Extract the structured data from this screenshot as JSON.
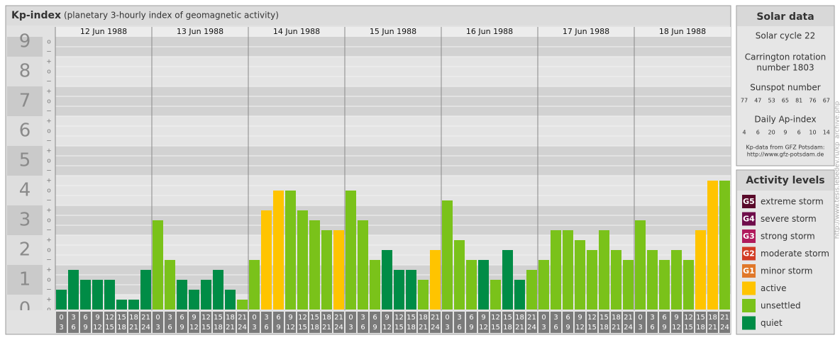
{
  "chart_data": {
    "type": "bar",
    "title": "Kp-index",
    "subtitle": "(planetary 3-hourly index of geomagnetic activity)",
    "days": [
      "12 Jun 1988",
      "13 Jun 1988",
      "14 Jun 1988",
      "15 Jun 1988",
      "16 Jun 1988",
      "17 Jun 1988",
      "18 Jun 1988"
    ],
    "hours": [
      [
        "0",
        "3"
      ],
      [
        "3",
        "6"
      ],
      [
        "6",
        "9"
      ],
      [
        "9",
        "12"
      ],
      [
        "12",
        "15"
      ],
      [
        "15",
        "18"
      ],
      [
        "18",
        "21"
      ],
      [
        "21",
        "24"
      ]
    ],
    "values": [
      0.667,
      1.333,
      1,
      1,
      1,
      0.333,
      0.333,
      1.333,
      3,
      1.667,
      1,
      0.667,
      1,
      1.333,
      0.667,
      0.333,
      1.667,
      3.333,
      4,
      4,
      3.333,
      3,
      2.667,
      2.667,
      4,
      3,
      1.667,
      2,
      1.333,
      1.333,
      1,
      2,
      3.667,
      2.333,
      1.667,
      1.667,
      1,
      2,
      1,
      1.333,
      1.667,
      2.667,
      2.667,
      2.333,
      2,
      2.667,
      2,
      1.667,
      3,
      2,
      1.667,
      2,
      1.667,
      2.667,
      4.333,
      4.333
    ],
    "colors": [
      "#008c46",
      "#008c46",
      "#008c46",
      "#008c46",
      "#008c46",
      "#008c46",
      "#008c46",
      "#008c46",
      "#7ac21a",
      "#7ac21a",
      "#008c46",
      "#008c46",
      "#008c46",
      "#008c46",
      "#008c46",
      "#7ac21a",
      "#7ac21a",
      "#ffc400",
      "#ffc400",
      "#7ac21a",
      "#7ac21a",
      "#7ac21a",
      "#7ac21a",
      "#ffc400",
      "#7ac21a",
      "#7ac21a",
      "#7ac21a",
      "#008c46",
      "#008c46",
      "#008c46",
      "#7ac21a",
      "#ffc400",
      "#7ac21a",
      "#7ac21a",
      "#7ac21a",
      "#008c46",
      "#7ac21a",
      "#008c46",
      "#008c46",
      "#7ac21a",
      "#7ac21a",
      "#7ac21a",
      "#7ac21a",
      "#7ac21a",
      "#7ac21a",
      "#7ac21a",
      "#7ac21a",
      "#7ac21a",
      "#7ac21a",
      "#7ac21a",
      "#7ac21a",
      "#7ac21a",
      "#7ac21a",
      "#ffc400",
      "#ffc400",
      "#7ac21a"
    ],
    "ylim": [
      0,
      9
    ],
    "yticks": [
      0,
      1,
      2,
      3,
      4,
      5,
      6,
      7,
      8,
      9
    ],
    "minor_tick_labels": [
      "+",
      "o",
      "−"
    ]
  },
  "solar_data": {
    "title": "Solar data",
    "cycle": "Solar cycle 22",
    "carrington": [
      "Carrington rotation",
      "number 1803"
    ],
    "sunspot_title": "Sunspot number",
    "sunspot": [
      77,
      47,
      53,
      65,
      81,
      76,
      67
    ],
    "ap_title": "Daily Ap-index",
    "ap": [
      4,
      6,
      20,
      9,
      6,
      10,
      14
    ],
    "source": [
      "Kp-data from GFZ Potsdam:",
      "http://www.gfz-potsdam.de"
    ]
  },
  "activity_levels": {
    "title": "Activity levels",
    "items": [
      {
        "code": "G5",
        "name": "extreme storm",
        "color": "#5a0a2a"
      },
      {
        "code": "G4",
        "name": "severe storm",
        "color": "#6e0c4a"
      },
      {
        "code": "G3",
        "name": "strong storm",
        "color": "#b01a5c"
      },
      {
        "code": "G2",
        "name": "moderate storm",
        "color": "#d23c24"
      },
      {
        "code": "G1",
        "name": "minor storm",
        "color": "#e0782a"
      },
      {
        "code": null,
        "name": "active",
        "color": "#ffc400"
      },
      {
        "code": null,
        "name": "unsettled",
        "color": "#7ac21a"
      },
      {
        "code": null,
        "name": "quiet",
        "color": "#008c46"
      }
    ]
  },
  "watermark": "http://www.tesis.lebedev.ru/kp_archive.php"
}
